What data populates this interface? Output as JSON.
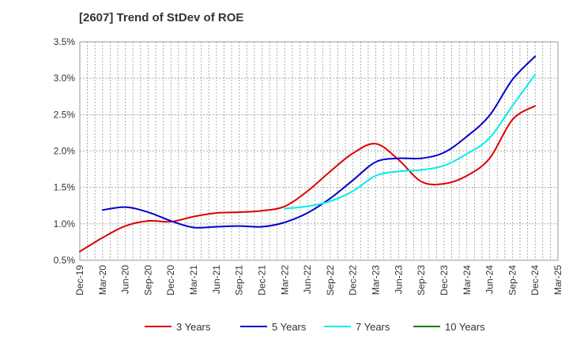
{
  "chart_data": {
    "type": "line",
    "title": "[2607]  Trend of StDev of ROE",
    "xlabel": "",
    "ylabel": "",
    "x_tick_labels": [
      "Dec-19",
      "Mar-20",
      "Jun-20",
      "Sep-20",
      "Dec-20",
      "Mar-21",
      "Jun-21",
      "Sep-21",
      "Dec-21",
      "Mar-22",
      "Jun-22",
      "Sep-22",
      "Dec-22",
      "Mar-23",
      "Jun-23",
      "Sep-23",
      "Dec-23",
      "Mar-24",
      "Jun-24",
      "Sep-24",
      "Dec-24",
      "Mar-25"
    ],
    "y_tick_labels": [
      "0.5%",
      "1.0%",
      "1.5%",
      "2.0%",
      "2.5%",
      "3.0%",
      "3.5%"
    ],
    "ylim": [
      0.5,
      3.5
    ],
    "y_unit": "%",
    "grid": true,
    "legend_position": "bottom",
    "series": [
      {
        "name": "3 Years",
        "color": "#dd0000",
        "values": [
          0.62,
          0.81,
          0.97,
          1.04,
          1.03,
          1.1,
          1.15,
          1.16,
          1.18,
          1.24,
          1.45,
          1.72,
          1.97,
          2.1,
          1.88,
          1.58,
          1.55,
          1.66,
          1.9,
          2.43,
          2.62,
          null
        ]
      },
      {
        "name": "5 Years",
        "color": "#0000cc",
        "values": [
          null,
          1.19,
          1.23,
          1.16,
          1.04,
          0.95,
          0.96,
          0.97,
          0.96,
          1.02,
          1.15,
          1.35,
          1.6,
          1.85,
          1.9,
          1.9,
          1.98,
          2.2,
          2.49,
          2.98,
          3.3,
          null
        ]
      },
      {
        "name": "7 Years",
        "color": "#00eeee",
        "values": [
          null,
          null,
          null,
          null,
          null,
          null,
          null,
          null,
          null,
          1.21,
          1.24,
          1.31,
          1.45,
          1.66,
          1.72,
          1.74,
          1.8,
          1.96,
          2.18,
          2.62,
          3.05,
          null
        ]
      },
      {
        "name": "10 Years",
        "color": "#008000",
        "values": [
          null,
          null,
          null,
          null,
          null,
          null,
          null,
          null,
          null,
          null,
          null,
          null,
          null,
          null,
          null,
          null,
          null,
          null,
          null,
          null,
          null,
          null
        ]
      }
    ]
  }
}
